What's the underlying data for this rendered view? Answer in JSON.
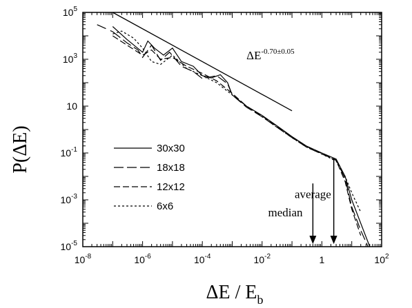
{
  "chart_data": {
    "type": "line",
    "title": "",
    "xlabel": "ΔE / E",
    "xlabel_sub": "b",
    "ylabel": "P(ΔE)",
    "xscale": "log",
    "yscale": "log",
    "xlim": [
      1e-08,
      100
    ],
    "ylim": [
      1e-05,
      100000.0
    ],
    "x_ticks": [
      {
        "base": "10",
        "exp": "-8",
        "value": 1e-08
      },
      {
        "base": "10",
        "exp": "-6",
        "value": 1e-06
      },
      {
        "base": "10",
        "exp": "-4",
        "value": 0.0001
      },
      {
        "base": "10",
        "exp": "-2",
        "value": 0.01
      },
      {
        "base": "1",
        "exp": "",
        "value": 1
      },
      {
        "base": "10",
        "exp": "2",
        "value": 100
      }
    ],
    "y_ticks": [
      {
        "base": "10",
        "exp": "-5",
        "value": 1e-05
      },
      {
        "base": "10",
        "exp": "-3",
        "value": 0.001
      },
      {
        "base": "10",
        "exp": "-1",
        "value": 0.1
      },
      {
        "base": "10",
        "exp": "",
        "value": 10
      },
      {
        "base": "10",
        "exp": "3",
        "value": 1000.0
      },
      {
        "base": "10",
        "exp": "5",
        "value": 100000.0
      }
    ],
    "legend_position": "lower-left",
    "series": [
      {
        "name": "30x30",
        "dash": "",
        "points": [
          [
            1e-07,
            25000.0
          ],
          [
            3e-07,
            7000.0
          ],
          [
            1e-06,
            2000.0
          ],
          [
            1.5e-06,
            6000.0
          ],
          [
            2.5e-06,
            3000.0
          ],
          [
            5e-06,
            1500.0
          ],
          [
            1e-05,
            3000.0
          ],
          [
            2e-05,
            800.0
          ],
          [
            5e-05,
            500.0
          ],
          [
            0.0001,
            200.0
          ],
          [
            0.0002,
            160.0
          ],
          [
            0.0004,
            220.0
          ],
          [
            0.0007,
            100.0
          ],
          [
            0.001,
            30.0
          ],
          [
            0.003,
            10.0
          ],
          [
            0.01,
            4
          ],
          [
            0.03,
            1.5
          ],
          [
            0.1,
            0.5
          ],
          [
            0.3,
            0.2
          ],
          [
            1,
            0.1
          ],
          [
            3,
            0.055
          ],
          [
            6,
            0.01
          ],
          [
            10,
            0.001
          ],
          [
            20,
            0.0001
          ],
          [
            40,
            1e-05
          ]
        ]
      },
      {
        "name": "18x18",
        "dash": "14,5",
        "points": [
          [
            1e-07,
            15000.0
          ],
          [
            3e-07,
            5000.0
          ],
          [
            7e-07,
            2500.0
          ],
          [
            1e-06,
            1200.0
          ],
          [
            2e-06,
            4000.0
          ],
          [
            4e-06,
            900.0
          ],
          [
            8e-06,
            2000.0
          ],
          [
            2e-05,
            500.0
          ],
          [
            5e-05,
            300.0
          ],
          [
            0.0001,
            150.0
          ],
          [
            0.0003,
            200.0
          ],
          [
            0.0007,
            90.0
          ],
          [
            0.001,
            30.0
          ],
          [
            0.003,
            9
          ],
          [
            0.01,
            3.5
          ],
          [
            0.03,
            1.3
          ],
          [
            0.1,
            0.45
          ],
          [
            0.3,
            0.18
          ],
          [
            1,
            0.09
          ],
          [
            3,
            0.05
          ],
          [
            6,
            0.008
          ],
          [
            10,
            0.0005
          ],
          [
            20,
            5e-05
          ],
          [
            35,
            1e-05
          ]
        ]
      },
      {
        "name": "12x12",
        "dash": "9,4",
        "points": [
          [
            1e-07,
            10000.0
          ],
          [
            3e-07,
            4000.0
          ],
          [
            1e-06,
            1500.0
          ],
          [
            2e-06,
            2500.0
          ],
          [
            4e-06,
            1000.0
          ],
          [
            1e-05,
            1200.0
          ],
          [
            3e-05,
            500.0
          ],
          [
            0.0001,
            250.0
          ],
          [
            0.0003,
            120.0
          ],
          [
            0.001,
            35.0
          ],
          [
            0.003,
            10.0
          ],
          [
            0.01,
            3.8
          ],
          [
            0.03,
            1.4
          ],
          [
            0.1,
            0.48
          ],
          [
            0.3,
            0.19
          ],
          [
            1,
            0.095
          ],
          [
            3,
            0.048
          ],
          [
            6,
            0.006
          ],
          [
            10,
            0.0004
          ],
          [
            20,
            3e-05
          ]
        ]
      },
      {
        "name": "6x6",
        "dash": "3,3",
        "points": [
          [
            1e-07,
            12000.0
          ],
          [
            2e-07,
            16000.0
          ],
          [
            5e-07,
            8000.0
          ],
          [
            1e-06,
            3000.0
          ],
          [
            2e-06,
            800.0
          ],
          [
            4e-06,
            600.0
          ],
          [
            1e-05,
            1500.0
          ],
          [
            3e-05,
            400.0
          ],
          [
            0.0001,
            200.0
          ],
          [
            0.0003,
            100.0
          ],
          [
            0.001,
            30.0
          ],
          [
            0.003,
            10.0
          ],
          [
            0.01,
            3.5
          ],
          [
            0.03,
            1.3
          ],
          [
            0.1,
            0.45
          ],
          [
            0.3,
            0.18
          ],
          [
            1,
            0.09
          ],
          [
            3,
            0.045
          ],
          [
            6,
            0.01
          ],
          [
            10,
            0.002
          ],
          [
            20,
            0.0003
          ]
        ]
      }
    ],
    "extra_lines": [
      {
        "name": "",
        "dash": "14,7",
        "points": [
          [
            3e-08,
            30000.0
          ],
          [
            1e-07,
            15000.0
          ]
        ]
      }
    ],
    "fit_line": {
      "points": [
        [
          1e-07,
          100000.0
        ],
        [
          0.1,
          6.3
        ]
      ],
      "label_base": "ΔE",
      "label_exp": "-0.70±0.05",
      "label_at": [
        0.003,
        1000.0
      ]
    },
    "annotations": [
      {
        "text": "median",
        "arrow_x": 0.5,
        "arrow_from": 0.005,
        "arrow_to": 1.3e-05,
        "text_at": [
          0.06,
          0.0002
        ]
      },
      {
        "text": "average",
        "arrow_x": 2.5,
        "arrow_from": 0.06,
        "arrow_to": 1.3e-05,
        "text_at": [
          0.5,
          0.0012
        ]
      }
    ]
  }
}
